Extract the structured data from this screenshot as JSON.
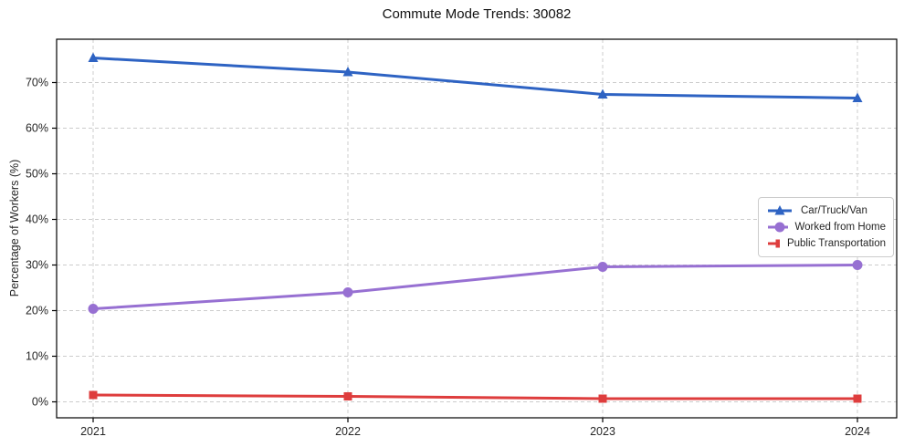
{
  "chart_data": {
    "type": "line",
    "title": "Commute Mode Trends: 30082",
    "xlabel": "",
    "ylabel": "Percentage of Workers (%)",
    "categories": [
      "2021",
      "2022",
      "2023",
      "2024"
    ],
    "series": [
      {
        "name": "Car/Truck/Van",
        "values": [
          75.4,
          72.3,
          67.4,
          66.6
        ],
        "color": "#2e63c3",
        "marker": "triangle"
      },
      {
        "name": "Worked from Home",
        "values": [
          20.4,
          24.0,
          29.6,
          30.0
        ],
        "color": "#9770d2",
        "marker": "circle"
      },
      {
        "name": "Public Transportation",
        "values": [
          1.5,
          1.2,
          0.7,
          0.7
        ],
        "color": "#de3d3d",
        "marker": "square"
      }
    ],
    "ylim": [
      -3.5,
      79.5
    ],
    "ytick_values": [
      0,
      10,
      20,
      30,
      40,
      50,
      60,
      70
    ],
    "ytick_labels": [
      "0%",
      "10%",
      "20%",
      "30%",
      "40%",
      "50%",
      "60%",
      "70%"
    ],
    "grid": true,
    "grid_style": "dashed",
    "legend_position": "center right",
    "colors": {
      "grid": "#cccccc",
      "axis": "#000000",
      "text": "#262626",
      "background": "#ffffff"
    }
  }
}
